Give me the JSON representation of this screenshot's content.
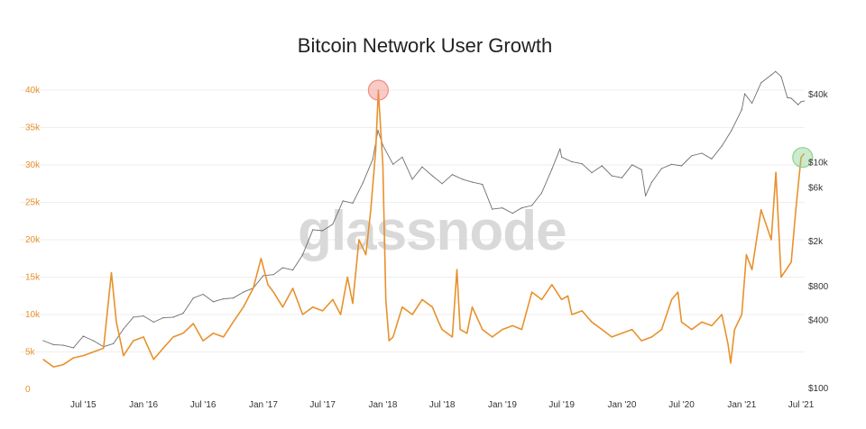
{
  "chart_data": {
    "type": "line",
    "title": "Bitcoin Network User Growth",
    "watermark": "glassnode",
    "x_ticks": [
      "Jul '15",
      "Jan '16",
      "Jul '16",
      "Jan '17",
      "Jul '17",
      "Jan '18",
      "Jul '18",
      "Jan '19",
      "Jul '19",
      "Jan '20",
      "Jul '20",
      "Jan '21",
      "Jul '21"
    ],
    "y_left": {
      "ticks": [
        "0",
        "5k",
        "10k",
        "15k",
        "20k",
        "25k",
        "30k",
        "35k",
        "40k"
      ],
      "ylim": [
        0,
        40000
      ],
      "color": "#e8912c"
    },
    "y_right": {
      "scale": "log",
      "ticks": [
        "$100",
        "$400",
        "$800",
        "$2k",
        "$6k",
        "$10k",
        "$40k"
      ],
      "tick_values": [
        100,
        400,
        800,
        2000,
        6000,
        10000,
        40000
      ],
      "ylim": [
        100,
        60000
      ],
      "color": "#333333"
    },
    "grid": true,
    "colors": {
      "users": "#e8912c",
      "price": "#6e6e6e",
      "top_marker": "#f28b82",
      "bottom_marker": "#8fd18f"
    },
    "series": [
      {
        "axis": "left",
        "points": [
          [
            "2015-03-01",
            4000
          ],
          [
            "2015-04-01",
            3000
          ],
          [
            "2015-05-01",
            3300
          ],
          [
            "2015-06-01",
            4200
          ],
          [
            "2015-07-01",
            4500
          ],
          [
            "2015-08-01",
            5000
          ],
          [
            "2015-09-01",
            5500
          ],
          [
            "2015-09-25",
            15600
          ],
          [
            "2015-10-10",
            9000
          ],
          [
            "2015-11-01",
            4500
          ],
          [
            "2015-12-01",
            6500
          ],
          [
            "2016-01-01",
            7000
          ],
          [
            "2016-02-01",
            4000
          ],
          [
            "2016-03-01",
            5500
          ],
          [
            "2016-04-01",
            7000
          ],
          [
            "2016-05-01",
            7500
          ],
          [
            "2016-06-01",
            8800
          ],
          [
            "2016-07-01",
            6500
          ],
          [
            "2016-08-01",
            7500
          ],
          [
            "2016-09-01",
            7000
          ],
          [
            "2016-10-01",
            9000
          ],
          [
            "2016-11-01",
            11000
          ],
          [
            "2016-12-01",
            13500
          ],
          [
            "2016-12-25",
            17500
          ],
          [
            "2017-01-15",
            14000
          ],
          [
            "2017-02-01",
            13000
          ],
          [
            "2017-03-01",
            11000
          ],
          [
            "2017-04-01",
            13500
          ],
          [
            "2017-05-01",
            10000
          ],
          [
            "2017-06-01",
            11000
          ],
          [
            "2017-07-01",
            10500
          ],
          [
            "2017-08-01",
            12000
          ],
          [
            "2017-08-25",
            10000
          ],
          [
            "2017-09-15",
            15000
          ],
          [
            "2017-10-01",
            11500
          ],
          [
            "2017-10-20",
            20000
          ],
          [
            "2017-11-10",
            18000
          ],
          [
            "2017-11-25",
            24000
          ],
          [
            "2017-12-10",
            32000
          ],
          [
            "2017-12-18",
            40000
          ],
          [
            "2018-01-01",
            30000
          ],
          [
            "2018-01-10",
            12000
          ],
          [
            "2018-01-20",
            6500
          ],
          [
            "2018-02-01",
            7000
          ],
          [
            "2018-03-01",
            11000
          ],
          [
            "2018-04-01",
            10000
          ],
          [
            "2018-05-01",
            12000
          ],
          [
            "2018-06-01",
            11000
          ],
          [
            "2018-06-20",
            9000
          ],
          [
            "2018-07-01",
            8000
          ],
          [
            "2018-08-01",
            7000
          ],
          [
            "2018-08-15",
            16000
          ],
          [
            "2018-08-25",
            8000
          ],
          [
            "2018-09-15",
            7500
          ],
          [
            "2018-10-01",
            11000
          ],
          [
            "2018-11-01",
            8000
          ],
          [
            "2018-12-01",
            7000
          ],
          [
            "2019-01-01",
            8000
          ],
          [
            "2019-02-01",
            8500
          ],
          [
            "2019-03-01",
            8000
          ],
          [
            "2019-04-01",
            13000
          ],
          [
            "2019-05-01",
            12000
          ],
          [
            "2019-06-01",
            14000
          ],
          [
            "2019-07-01",
            12000
          ],
          [
            "2019-07-20",
            12500
          ],
          [
            "2019-08-01",
            10000
          ],
          [
            "2019-09-01",
            10500
          ],
          [
            "2019-10-01",
            9000
          ],
          [
            "2019-11-01",
            8000
          ],
          [
            "2019-12-01",
            7000
          ],
          [
            "2020-01-01",
            7500
          ],
          [
            "2020-02-01",
            8000
          ],
          [
            "2020-03-01",
            6500
          ],
          [
            "2020-04-01",
            7000
          ],
          [
            "2020-05-01",
            8000
          ],
          [
            "2020-06-01",
            12000
          ],
          [
            "2020-06-20",
            13000
          ],
          [
            "2020-07-01",
            9000
          ],
          [
            "2020-08-01",
            8000
          ],
          [
            "2020-09-01",
            9000
          ],
          [
            "2020-10-01",
            8500
          ],
          [
            "2020-11-01",
            10000
          ],
          [
            "2020-11-20",
            6000
          ],
          [
            "2020-11-28",
            3500
          ],
          [
            "2020-12-10",
            8000
          ],
          [
            "2021-01-01",
            10000
          ],
          [
            "2021-01-15",
            18000
          ],
          [
            "2021-02-01",
            16000
          ],
          [
            "2021-03-01",
            24000
          ],
          [
            "2021-04-01",
            20000
          ],
          [
            "2021-04-15",
            29000
          ],
          [
            "2021-05-01",
            15000
          ],
          [
            "2021-06-01",
            17000
          ],
          [
            "2021-06-15",
            24000
          ],
          [
            "2021-07-01",
            31000
          ],
          [
            "2021-07-10",
            31500
          ]
        ]
      },
      {
        "axis": "right",
        "points": [
          [
            "2015-03-01",
            260
          ],
          [
            "2015-04-01",
            240
          ],
          [
            "2015-05-01",
            237
          ],
          [
            "2015-06-01",
            225
          ],
          [
            "2015-07-01",
            285
          ],
          [
            "2015-08-01",
            260
          ],
          [
            "2015-09-01",
            230
          ],
          [
            "2015-10-01",
            245
          ],
          [
            "2015-11-01",
            330
          ],
          [
            "2015-12-01",
            420
          ],
          [
            "2016-01-01",
            430
          ],
          [
            "2016-02-01",
            380
          ],
          [
            "2016-03-01",
            415
          ],
          [
            "2016-04-01",
            420
          ],
          [
            "2016-05-01",
            455
          ],
          [
            "2016-06-01",
            620
          ],
          [
            "2016-07-01",
            670
          ],
          [
            "2016-08-01",
            575
          ],
          [
            "2016-09-01",
            610
          ],
          [
            "2016-10-01",
            620
          ],
          [
            "2016-11-01",
            700
          ],
          [
            "2016-12-01",
            760
          ],
          [
            "2017-01-01",
            980
          ],
          [
            "2017-02-01",
            1000
          ],
          [
            "2017-03-01",
            1150
          ],
          [
            "2017-04-01",
            1100
          ],
          [
            "2017-05-01",
            1500
          ],
          [
            "2017-06-01",
            2500
          ],
          [
            "2017-07-01",
            2450
          ],
          [
            "2017-08-01",
            2800
          ],
          [
            "2017-09-01",
            4500
          ],
          [
            "2017-10-01",
            4300
          ],
          [
            "2017-11-01",
            6500
          ],
          [
            "2017-12-01",
            10500
          ],
          [
            "2017-12-17",
            19000
          ],
          [
            "2018-01-01",
            14000
          ],
          [
            "2018-02-01",
            9500
          ],
          [
            "2018-03-01",
            11000
          ],
          [
            "2018-04-01",
            7000
          ],
          [
            "2018-05-01",
            9000
          ],
          [
            "2018-06-01",
            7500
          ],
          [
            "2018-07-01",
            6400
          ],
          [
            "2018-08-01",
            7700
          ],
          [
            "2018-09-01",
            7000
          ],
          [
            "2018-10-01",
            6600
          ],
          [
            "2018-11-01",
            6300
          ],
          [
            "2018-12-01",
            3800
          ],
          [
            "2019-01-01",
            3900
          ],
          [
            "2019-02-01",
            3500
          ],
          [
            "2019-03-01",
            3900
          ],
          [
            "2019-04-01",
            4100
          ],
          [
            "2019-05-01",
            5300
          ],
          [
            "2019-06-01",
            8600
          ],
          [
            "2019-06-26",
            13000
          ],
          [
            "2019-07-01",
            11000
          ],
          [
            "2019-08-01",
            10000
          ],
          [
            "2019-09-01",
            9600
          ],
          [
            "2019-10-01",
            8000
          ],
          [
            "2019-11-01",
            9200
          ],
          [
            "2019-12-01",
            7500
          ],
          [
            "2020-01-01",
            7200
          ],
          [
            "2020-02-01",
            9400
          ],
          [
            "2020-03-01",
            8500
          ],
          [
            "2020-03-13",
            5000
          ],
          [
            "2020-04-01",
            6600
          ],
          [
            "2020-05-01",
            8700
          ],
          [
            "2020-06-01",
            9500
          ],
          [
            "2020-07-01",
            9200
          ],
          [
            "2020-08-01",
            11300
          ],
          [
            "2020-09-01",
            11900
          ],
          [
            "2020-10-01",
            10600
          ],
          [
            "2020-11-01",
            13800
          ],
          [
            "2020-12-01",
            19000
          ],
          [
            "2021-01-01",
            29000
          ],
          [
            "2021-01-10",
            40000
          ],
          [
            "2021-02-01",
            33000
          ],
          [
            "2021-03-01",
            50000
          ],
          [
            "2021-04-01",
            58800
          ],
          [
            "2021-04-14",
            63000
          ],
          [
            "2021-05-01",
            57000
          ],
          [
            "2021-05-20",
            37000
          ],
          [
            "2021-06-01",
            36500
          ],
          [
            "2021-06-22",
            32000
          ],
          [
            "2021-07-01",
            34000
          ],
          [
            "2021-07-10",
            34500
          ]
        ]
      }
    ],
    "markers": [
      {
        "date": "2017-12-18",
        "value": 40000,
        "color": "top_marker"
      },
      {
        "date": "2021-07-06",
        "value": 31000,
        "color": "bottom_marker"
      }
    ]
  }
}
